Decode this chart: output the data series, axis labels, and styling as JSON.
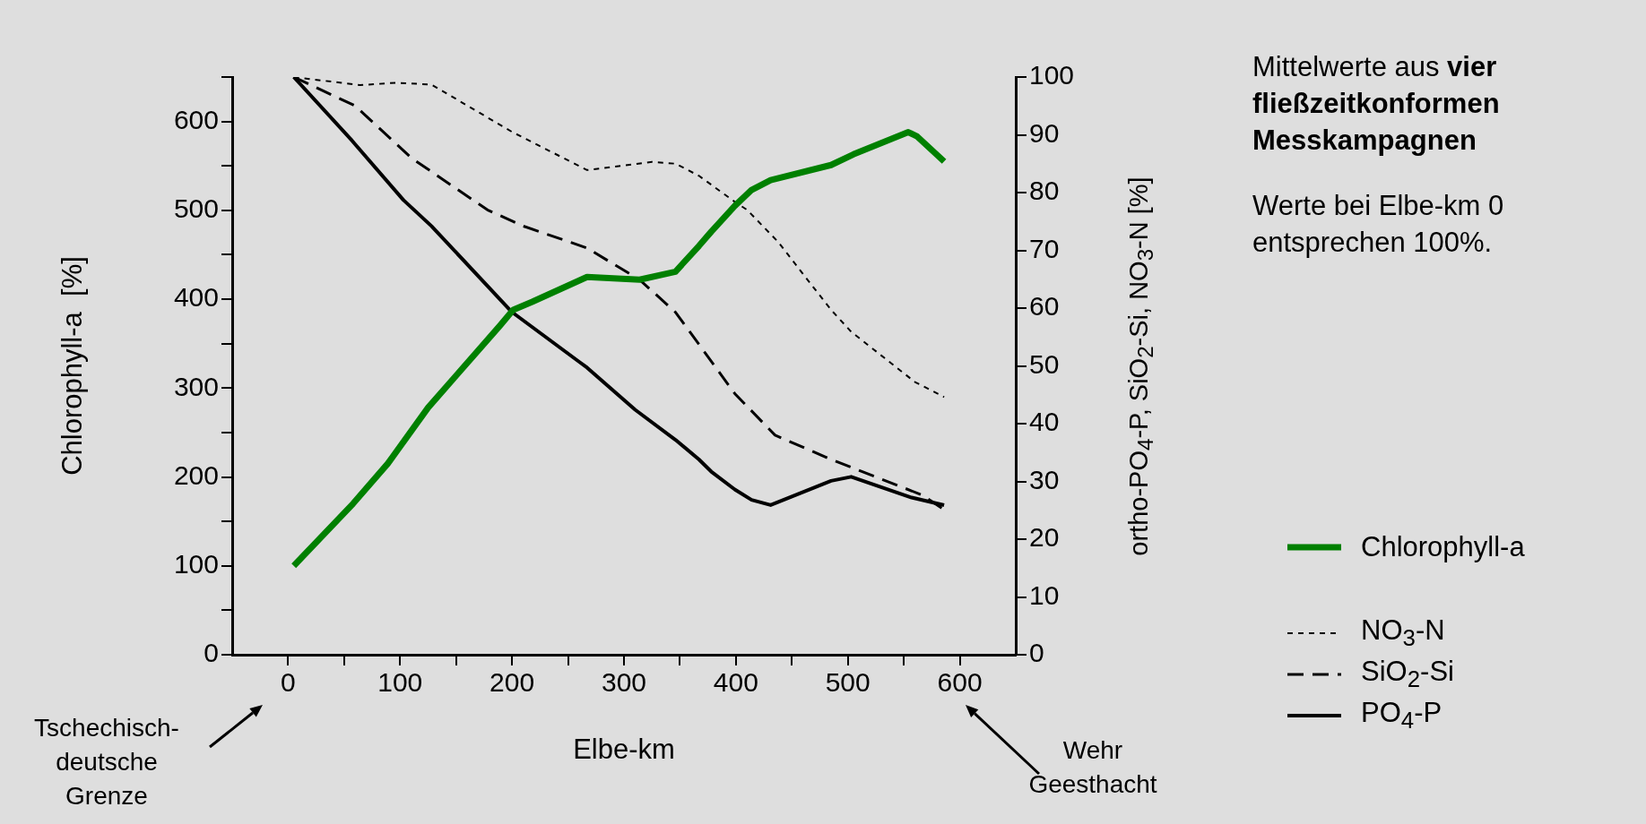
{
  "chart_data": {
    "type": "line",
    "xlabel": "Elbe-km",
    "ylabel": "Chlorophyll-a  [%]",
    "y2label": "ortho-PO$_{4}$-P, SiO$_{2}$-Si, NO$_{3}$-N  [%]",
    "xlim": [
      -50,
      650
    ],
    "xticks": [
      0,
      {
        "value": 50,
        "label": null
      },
      100,
      {
        "value": 150,
        "label": null
      },
      200,
      {
        "value": 250,
        "label": null
      },
      300,
      {
        "value": 350,
        "label": null
      },
      400,
      {
        "value": 450,
        "label": null
      },
      500,
      {
        "value": 550,
        "label": null
      },
      600
    ],
    "ylim": [
      0,
      650
    ],
    "yticks": [
      0,
      {
        "value": 50,
        "label": null
      },
      100,
      {
        "value": 150,
        "label": null
      },
      200,
      {
        "value": 250,
        "label": null
      },
      300,
      {
        "value": 350,
        "label": null
      },
      400,
      {
        "value": 450,
        "label": null
      },
      500,
      {
        "value": 550,
        "label": null
      },
      600,
      {
        "value": 650,
        "label": null
      }
    ],
    "y2lim": [
      0,
      100
    ],
    "y2ticks": [
      0,
      10,
      20,
      30,
      40,
      50,
      60,
      70,
      80,
      90,
      100
    ],
    "grid": false,
    "legend": "right",
    "marker": "none",
    "series": [
      {
        "name": "Chlorophyll-a",
        "color": "#008000",
        "line_style": "solid",
        "axis": "y",
        "x": [
          5,
          58,
          89,
          125,
          189,
          201,
          218,
          267,
          314,
          346,
          367,
          378,
          399,
          414,
          431,
          485,
          505,
          554,
          562,
          586
        ],
        "values": [
          100,
          170,
          215,
          278,
          370,
          388,
          397,
          425,
          422,
          431,
          460,
          476,
          505,
          523,
          534,
          551,
          563,
          588,
          583,
          555
        ]
      },
      {
        "name": "NO$_{3}$-N",
        "color": "#000000",
        "line_style": "dotted",
        "axis": "y2",
        "x": [
          5,
          64,
          96,
          128,
          200,
          267,
          325,
          346,
          367,
          399,
          410,
          438,
          460,
          485,
          503,
          560,
          586
        ],
        "values": [
          100,
          98.6,
          99,
          98.7,
          90.5,
          83.9,
          85.3,
          85,
          82.9,
          78.4,
          77,
          71.4,
          65.9,
          59.7,
          55.9,
          47.2,
          44.6
        ]
      },
      {
        "name": "SiO$_{2}$-Si",
        "color": "#000000",
        "line_style": "dashed",
        "axis": "y2",
        "x": [
          5,
          60,
          110,
          178,
          210,
          267,
          314,
          346,
          399,
          410,
          435,
          485,
          567,
          586
        ],
        "values": [
          100,
          95,
          86,
          77,
          74.2,
          70.4,
          64.9,
          59.3,
          45.2,
          43,
          38,
          33.8,
          27.6,
          25.1
        ]
      },
      {
        "name": "PO$_{4}$-P",
        "color": "#000000",
        "line_style": "solid",
        "axis": "y2",
        "x": [
          5,
          57,
          103,
          128,
          200,
          260,
          267,
          310,
          346,
          367,
          378,
          399,
          414,
          431,
          485,
          503,
          557,
          586
        ],
        "values": [
          100,
          89,
          78.7,
          74.2,
          59.3,
          50.7,
          49.7,
          42.4,
          37.2,
          33.8,
          31.7,
          28.6,
          26.8,
          25.9,
          30.1,
          30.8,
          27.2,
          25.9
        ]
      }
    ],
    "annotations": [
      "Mittelwerte aus",
      "vier fließzeitkonformen Messkampagnen",
      "Werte bei Elbe-km 0 entsprechen 100%.",
      "Tschechisch-deutsche Grenze",
      "Wehr Geesthacht"
    ]
  }
}
